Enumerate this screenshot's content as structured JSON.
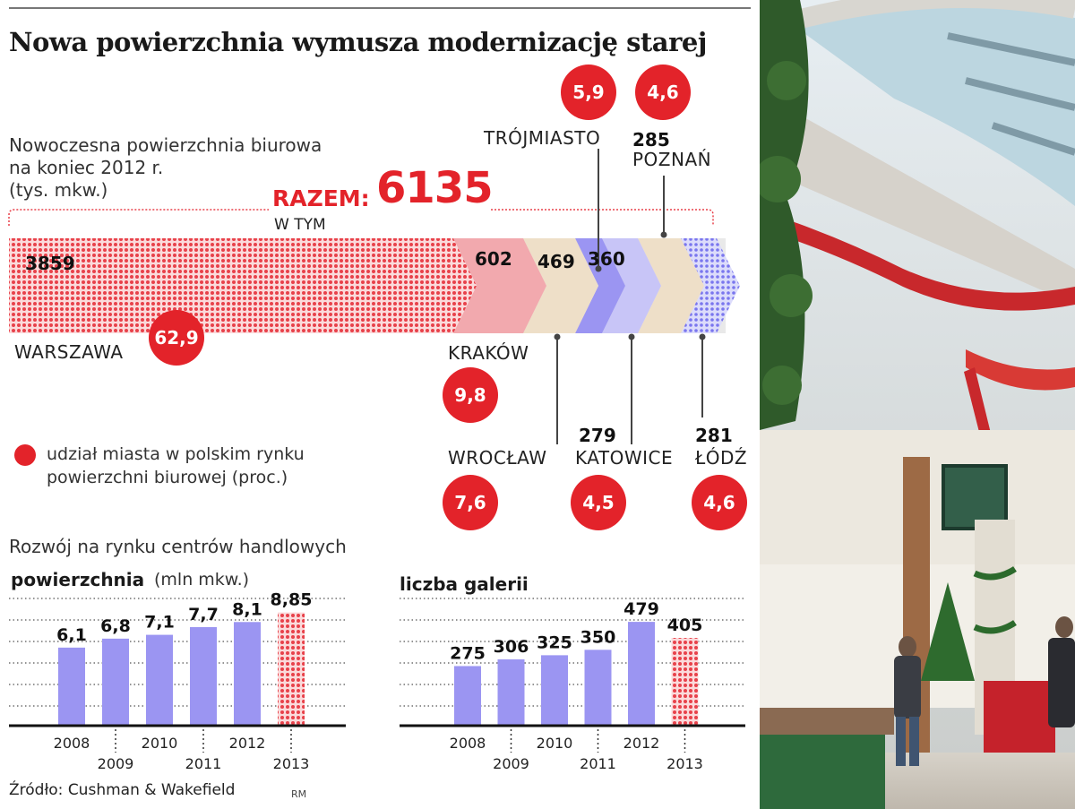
{
  "title": "Nowa powierzchnia wymusza modernizację starej",
  "subtitle": {
    "line1": "Nowoczesna powierzchnia biurowa",
    "line2": "na koniec 2012 r.",
    "line3": "(tys. mkw.)"
  },
  "total": {
    "label": "RAZEM:",
    "value": "6135",
    "sublabel": "W TYM"
  },
  "legend": {
    "line1": "udział miasta w polskim rynku",
    "line2": "powierzchni biurowej (proc.)"
  },
  "colors": {
    "accent_red": "#e3232a",
    "warszawa": "#ec4a52",
    "krakow": "#f2a9ae",
    "wroclaw": "#eedfc8",
    "katowice": "#9b95f2",
    "trojmiasto": "#c8c5f7",
    "poznan": "#eedfc8",
    "lodz": "#8f8cf0",
    "bars_purple": "#9b95f2",
    "forecast_red": "#ec4a52"
  },
  "cities": [
    {
      "name": "WARSZAWA",
      "value": "3859",
      "share": "62,9"
    },
    {
      "name": "KRAKÓW",
      "value": "602",
      "share": "9,8"
    },
    {
      "name": "WROCŁAW",
      "value": "469",
      "share": "7,6"
    },
    {
      "name": "TRÓJMIASTO",
      "value": "360",
      "share": "5,9"
    },
    {
      "name": "KATOWICE",
      "value": "279",
      "share": "4,5"
    },
    {
      "name": "POZNAŃ",
      "value": "285",
      "share": "4,6"
    },
    {
      "name": "ŁÓDŹ",
      "value": "281",
      "share": "4,6"
    }
  ],
  "section2_title": "Rozwój na rynku centrów handlowych",
  "chart_data": [
    {
      "type": "bar",
      "title": "powierzchnia",
      "unit": "(mln mkw.)",
      "categories": [
        "2008",
        "2009",
        "2010",
        "2011",
        "2012",
        "2013"
      ],
      "values": [
        6.1,
        6.8,
        7.1,
        7.7,
        8.1,
        8.85
      ],
      "value_labels": [
        "6,1",
        "6,8",
        "7,1",
        "7,7",
        "8,1",
        "8,85"
      ],
      "forecast_index": 5,
      "ylim": [
        0,
        10.5
      ],
      "grid": true
    },
    {
      "type": "bar",
      "title": "liczba galerii",
      "categories": [
        "2008",
        "2009",
        "2010",
        "2011",
        "2012",
        "2013"
      ],
      "values": [
        275,
        306,
        325,
        350,
        479,
        405
      ],
      "value_labels": [
        "275",
        "306",
        "325",
        "350",
        "479",
        "405"
      ],
      "forecast_index": 5,
      "ylim": [
        0,
        620
      ],
      "grid": true
    }
  ],
  "source": "Źródło: Cushman & Wakefield",
  "credit": "RM"
}
